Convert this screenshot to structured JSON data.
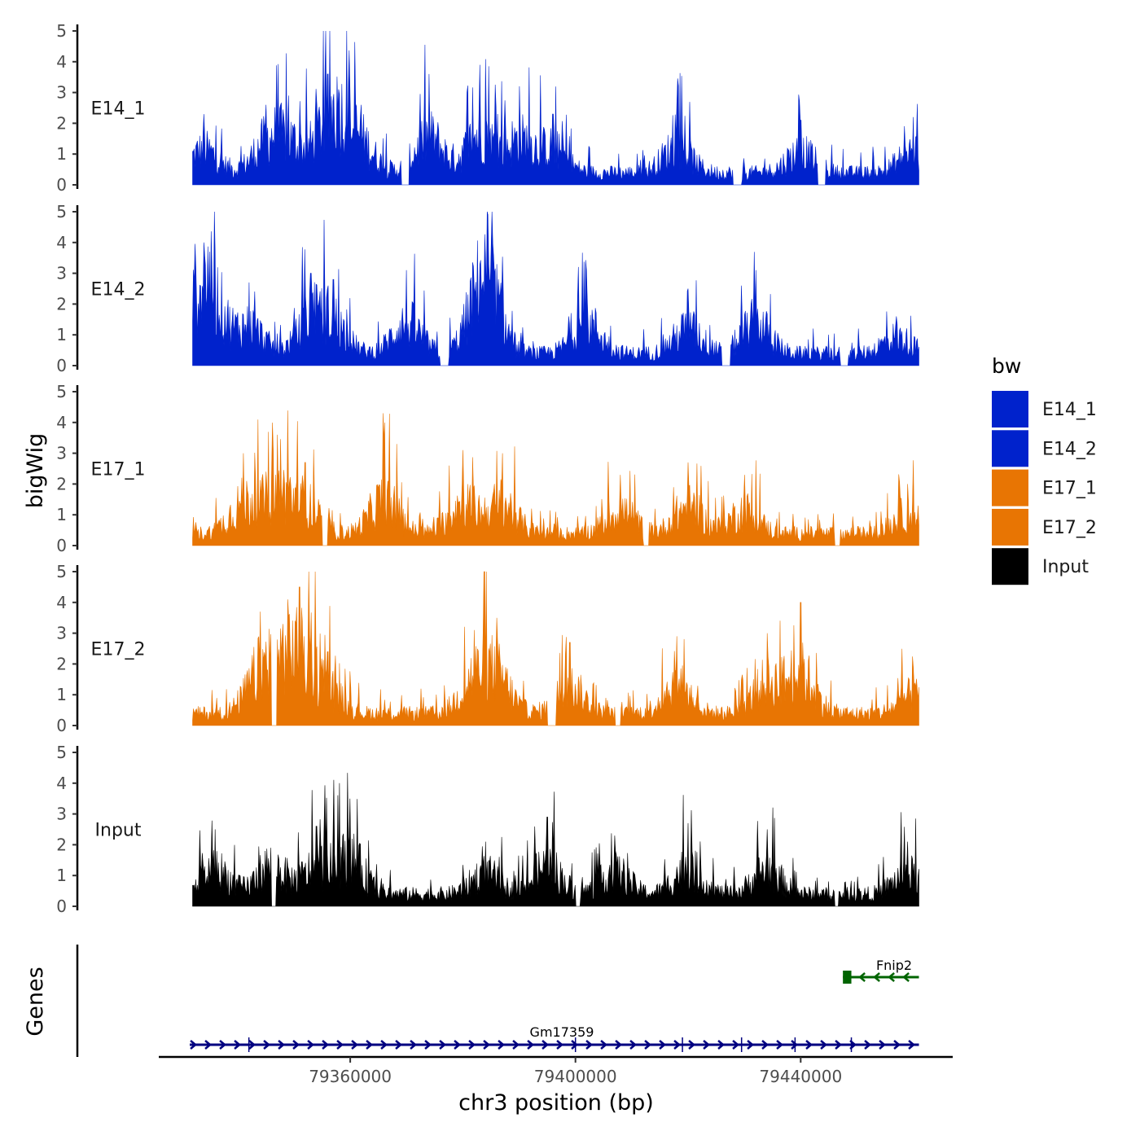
{
  "chart_data": {
    "type": "area",
    "title": "",
    "xlabel": "chr3 position (bp)",
    "ylabel": "bigWig",
    "genes_label": "Genes",
    "xlim": [
      79326000,
      79467000
    ],
    "data_x_range": [
      79332000,
      79461000
    ],
    "ylim": [
      0,
      5
    ],
    "yticks": [
      "0",
      "1",
      "2",
      "3",
      "4",
      "5"
    ],
    "xticks": [
      {
        "value": 79360000,
        "label": "79360000"
      },
      {
        "value": 79400000,
        "label": "79400000"
      },
      {
        "value": 79440000,
        "label": "79440000"
      }
    ],
    "legend": {
      "title": "bw",
      "entries": [
        {
          "label": "E14_1",
          "color": "#0022CC"
        },
        {
          "label": "E14_2",
          "color": "#0022CC"
        },
        {
          "label": "E17_1",
          "color": "#E87503"
        },
        {
          "label": "E17_2",
          "color": "#E87503"
        },
        {
          "label": "Input",
          "color": "#000000"
        }
      ]
    },
    "series": [
      {
        "name": "E14_1",
        "color": "#0022CC",
        "peaks": [
          {
            "x": 79334000,
            "y": 2.3
          },
          {
            "x": 79345000,
            "y": 2.6
          },
          {
            "x": 79349000,
            "y": 2.9
          },
          {
            "x": 79356000,
            "y": 3.6
          },
          {
            "x": 79358000,
            "y": 3.1
          },
          {
            "x": 79362000,
            "y": 2.6
          },
          {
            "x": 79374000,
            "y": 3.6
          },
          {
            "x": 79383000,
            "y": 3.9
          },
          {
            "x": 79390000,
            "y": 3.2
          },
          {
            "x": 79396000,
            "y": 2.3
          },
          {
            "x": 79418000,
            "y": 2.6
          },
          {
            "x": 79440000,
            "y": 2.1
          },
          {
            "x": 79460000,
            "y": 2.2
          }
        ],
        "gaps": [
          [
            79369000,
            79370500
          ],
          [
            79428000,
            79429500
          ],
          [
            79443000,
            79444500
          ]
        ]
      },
      {
        "name": "E14_2",
        "color": "#0022CC",
        "peaks": [
          {
            "x": 79334000,
            "y": 4.0
          },
          {
            "x": 79335000,
            "y": 3.7
          },
          {
            "x": 79342000,
            "y": 2.7
          },
          {
            "x": 79353000,
            "y": 3.0
          },
          {
            "x": 79357000,
            "y": 2.8
          },
          {
            "x": 79370000,
            "y": 3.1
          },
          {
            "x": 79383000,
            "y": 3.3
          },
          {
            "x": 79384500,
            "y": 4.9
          },
          {
            "x": 79402000,
            "y": 3.1
          },
          {
            "x": 79420000,
            "y": 2.5
          },
          {
            "x": 79432000,
            "y": 3.1
          },
          {
            "x": 79457000,
            "y": 1.6
          }
        ],
        "gaps": [
          [
            79376000,
            79377500
          ],
          [
            79426000,
            79427500
          ],
          [
            79447000,
            79448500
          ]
        ]
      },
      {
        "name": "E17_1",
        "color": "#E87503",
        "peaks": [
          {
            "x": 79341000,
            "y": 3.0
          },
          {
            "x": 79347000,
            "y": 3.6
          },
          {
            "x": 79352000,
            "y": 2.7
          },
          {
            "x": 79366000,
            "y": 3.4
          },
          {
            "x": 79380000,
            "y": 3.1
          },
          {
            "x": 79387000,
            "y": 3.0
          },
          {
            "x": 79408000,
            "y": 2.3
          },
          {
            "x": 79420000,
            "y": 2.7
          },
          {
            "x": 79430000,
            "y": 2.3
          },
          {
            "x": 79459000,
            "y": 2.0
          }
        ],
        "gaps": [
          [
            79355000,
            79356000
          ],
          [
            79412000,
            79413000
          ],
          [
            79446000,
            79447000
          ]
        ]
      },
      {
        "name": "E17_2",
        "color": "#E87503",
        "peaks": [
          {
            "x": 79344000,
            "y": 3.7
          },
          {
            "x": 79348000,
            "y": 3.3
          },
          {
            "x": 79351000,
            "y": 4.5
          },
          {
            "x": 79356000,
            "y": 2.4
          },
          {
            "x": 79382000,
            "y": 3.1
          },
          {
            "x": 79386000,
            "y": 3.5
          },
          {
            "x": 79399000,
            "y": 2.7
          },
          {
            "x": 79418000,
            "y": 2.9
          },
          {
            "x": 79434000,
            "y": 3.0
          },
          {
            "x": 79440000,
            "y": 4.0
          },
          {
            "x": 79460000,
            "y": 1.9
          }
        ],
        "gaps": [
          [
            79346000,
            79347000
          ],
          [
            79395000,
            79396500
          ],
          [
            79407000,
            79408000
          ]
        ]
      },
      {
        "name": "Input",
        "color": "#000000",
        "peaks": [
          {
            "x": 79336000,
            "y": 2.5
          },
          {
            "x": 79346000,
            "y": 2.9
          },
          {
            "x": 79354000,
            "y": 2.6
          },
          {
            "x": 79360000,
            "y": 3.5
          },
          {
            "x": 79384000,
            "y": 2.1
          },
          {
            "x": 79395000,
            "y": 2.9
          },
          {
            "x": 79407000,
            "y": 2.3
          },
          {
            "x": 79420000,
            "y": 2.7
          },
          {
            "x": 79434000,
            "y": 2.5
          },
          {
            "x": 79459000,
            "y": 2.1
          }
        ],
        "gaps": [
          [
            79346000,
            79346800
          ],
          [
            79400000,
            79400800
          ],
          [
            79446000,
            79446800
          ]
        ]
      }
    ],
    "genes": [
      {
        "name": "Fnip2",
        "color": "#006400",
        "strand": "-",
        "start": 79447500,
        "end": 79461000,
        "exons": [
          [
            79447500,
            79449000
          ]
        ]
      },
      {
        "name": "Gm17359",
        "color": "#000080",
        "strand": "+",
        "start": 79331500,
        "end": 79461000,
        "exons": []
      }
    ]
  }
}
